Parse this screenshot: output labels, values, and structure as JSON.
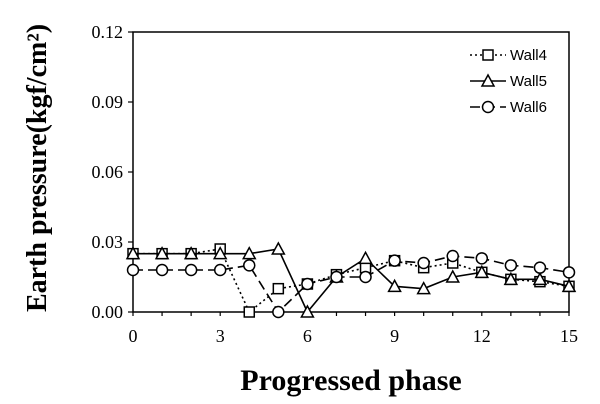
{
  "chart_data": {
    "type": "line",
    "title": "",
    "xlabel": "Progressed phase",
    "ylabel": "Earth pressure(kgf/cm²)",
    "xlim": [
      0,
      15
    ],
    "ylim": [
      0,
      0.12
    ],
    "x_ticks": [
      "0",
      "3",
      "6",
      "9",
      "12",
      "15"
    ],
    "y_ticks": [
      "0.00",
      "0.03",
      "0.06",
      "0.09",
      "0.12"
    ],
    "grid": false,
    "legend_position": "top-right",
    "x": [
      0,
      1,
      2,
      3,
      4,
      5,
      6,
      7,
      8,
      9,
      10,
      11,
      12,
      13,
      14,
      15
    ],
    "series": [
      {
        "name": "Wall4",
        "marker": "square",
        "line_style": "dotted",
        "values": [
          0.025,
          0.025,
          0.025,
          0.027,
          0.0,
          0.01,
          0.012,
          0.016,
          0.019,
          0.022,
          0.019,
          0.021,
          0.017,
          0.014,
          0.013,
          0.011
        ]
      },
      {
        "name": "Wall5",
        "marker": "triangle",
        "line_style": "solid",
        "values": [
          0.025,
          0.025,
          0.025,
          0.025,
          0.025,
          0.027,
          0.0,
          0.015,
          0.023,
          0.011,
          0.01,
          0.015,
          0.017,
          0.014,
          0.014,
          0.011
        ]
      },
      {
        "name": "Wall6",
        "marker": "circle",
        "line_style": "dashed",
        "values": [
          0.018,
          0.018,
          0.018,
          0.018,
          0.02,
          0.0,
          0.012,
          0.015,
          0.015,
          0.022,
          0.021,
          0.024,
          0.023,
          0.02,
          0.019,
          0.017
        ]
      }
    ]
  }
}
